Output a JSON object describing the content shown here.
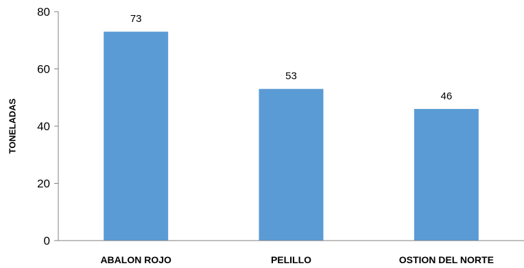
{
  "chart_data": {
    "type": "bar",
    "title": "",
    "xlabel": "",
    "ylabel": "TONELADAS",
    "categories": [
      "ABALON ROJO",
      "PELILLO",
      "OSTION DEL NORTE"
    ],
    "values": [
      73,
      53,
      46
    ],
    "data_labels": [
      "73",
      "53",
      "46"
    ],
    "ylim": [
      0,
      80
    ],
    "yticks": [
      0,
      20,
      40,
      60,
      80
    ],
    "ytick_labels": [
      "0",
      "20",
      "40",
      "60",
      "80"
    ],
    "grid": false,
    "legend": "none",
    "colors": {
      "bar": "#5B9BD5",
      "axis": "#7f7f7f",
      "text": "#000000"
    }
  }
}
